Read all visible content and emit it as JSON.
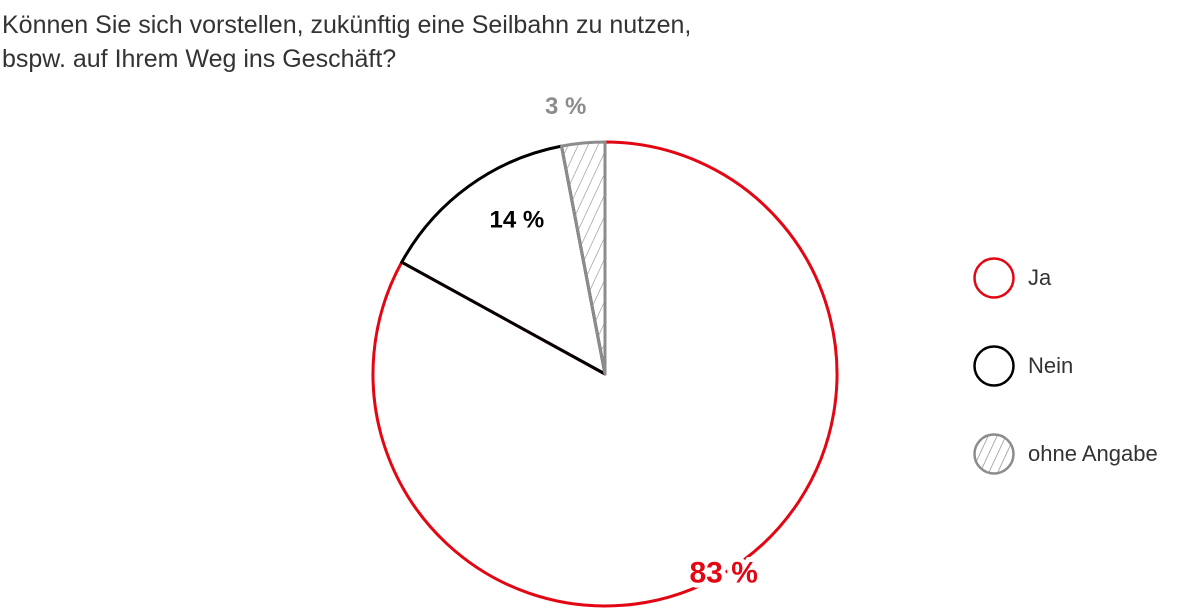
{
  "chart_data": {
    "type": "pie",
    "title_lines": [
      "Können Sie sich vorstellen, zukünftig eine Seilbahn zu nutzen,",
      "bspw. auf Ihrem Weg ins Geschäft?"
    ],
    "slices": [
      {
        "name": "Ja",
        "value": 83,
        "label": "83 %",
        "color": "#e30613",
        "pattern": "none"
      },
      {
        "name": "Nein",
        "value": 14,
        "label": "14 %",
        "color": "#000000",
        "pattern": "none"
      },
      {
        "name": "ohne Angabe",
        "value": 3,
        "label": "3 %",
        "color": "#8c8c8c",
        "pattern": "hatch"
      }
    ],
    "start": "12 o'clock",
    "direction": "clockwise",
    "legend_position": "right"
  }
}
